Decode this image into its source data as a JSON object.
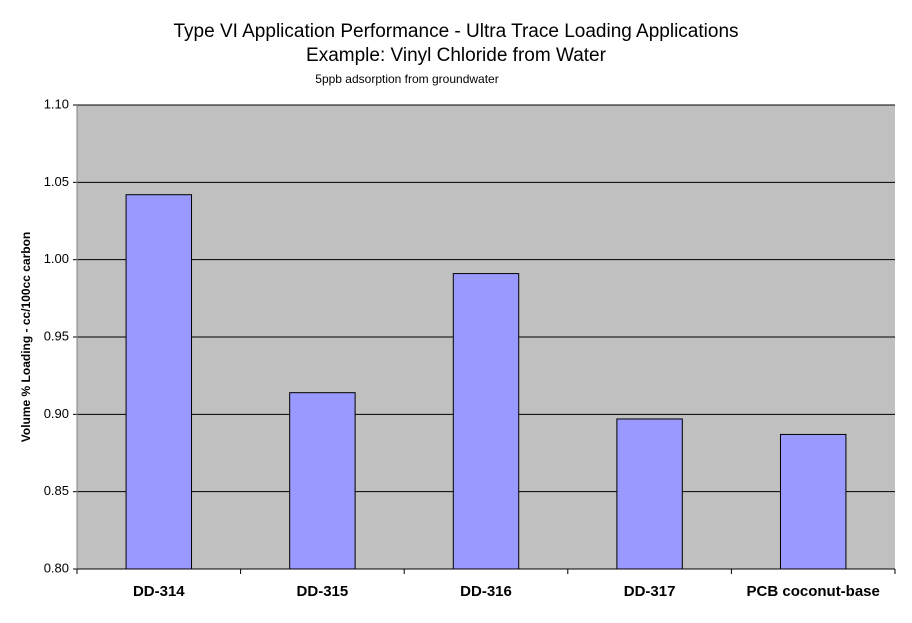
{
  "chart_data": {
    "type": "bar",
    "title": "Type VI Application Performance - Ultra Trace Loading Applications",
    "subtitle": "Example: Vinyl Chloride from Water",
    "annotation": "5ppb adsorption from groundwater",
    "y_label": "Volume % Loading - cc/100cc carbon",
    "categories": [
      "DD-314",
      "DD-315",
      "DD-316",
      "DD-317",
      "PCB coconut-base"
    ],
    "values": [
      1.042,
      0.914,
      0.991,
      0.897,
      0.887
    ],
    "color": "#9999ff",
    "ylim": [
      0.8,
      1.1
    ],
    "yticks": [
      {
        "value": 0.8,
        "label": "0.80"
      },
      0.85,
      {
        "value": 0.9,
        "label": "0.90"
      },
      0.95,
      {
        "value": 1.0,
        "label": "1.00"
      },
      1.05,
      {
        "value": 1.1,
        "label": "1.10"
      }
    ],
    "grid": true
  }
}
